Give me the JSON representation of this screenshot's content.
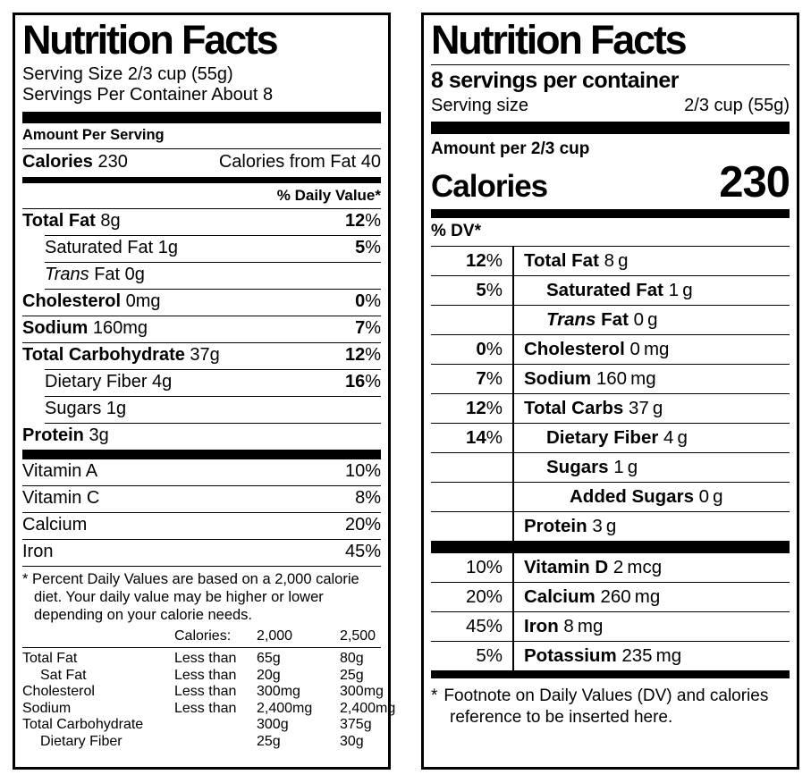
{
  "left_label": {
    "title": "Nutrition Facts",
    "serving_size": "Serving Size 2/3 cup (55g)",
    "servings_per_container": "Servings Per Container About 8",
    "amount_per_serving": "Amount Per Serving",
    "calories_label": "Calories",
    "calories_value": "230",
    "calories_from_fat": "Calories from Fat 40",
    "daily_value_header": "% Daily Value*",
    "nutrient_rows": [
      {
        "it": "",
        "b": "Total Fat",
        "r": " 8g",
        "dv": "12",
        "dvp": "%"
      },
      {
        "it": "",
        "b": "",
        "r": "Saturated Fat 1g",
        "dv": "5",
        "dvp": "%"
      },
      {
        "it": "Trans",
        "b": "",
        "r": " Fat 0g",
        "dv": "",
        "dvp": ""
      },
      {
        "it": "",
        "b": "Cholesterol",
        "r": " 0mg",
        "dv": "0",
        "dvp": "%"
      },
      {
        "it": "",
        "b": "Sodium",
        "r": " 160mg",
        "dv": "7",
        "dvp": "%"
      },
      {
        "it": "",
        "b": "Total Carbohydrate",
        "r": " 37g",
        "dv": "12",
        "dvp": "%"
      },
      {
        "it": "",
        "b": "",
        "r": "Dietary Fiber 4g",
        "dv": "16",
        "dvp": "%"
      },
      {
        "it": "",
        "b": "",
        "r": "Sugars 1g",
        "dv": "",
        "dvp": ""
      },
      {
        "it": "",
        "b": "Protein",
        "r": " 3g",
        "dv": "",
        "dvp": ""
      }
    ],
    "vitamin_rows": [
      {
        "name": "Vitamin A",
        "dv": "10",
        "dvp": "%"
      },
      {
        "name": "Vitamin C",
        "dv": "8",
        "dvp": "%"
      },
      {
        "name": "Calcium",
        "dv": "20",
        "dvp": "%"
      },
      {
        "name": "Iron",
        "dv": "45",
        "dvp": "%"
      }
    ],
    "footnote_marker": "*",
    "footnote_text": "Percent Daily Values are based on a 2,000 calorie diet. Your daily value may be higher or lower depending on your calorie needs.",
    "dv_table": {
      "header": {
        "calories": "Calories:",
        "c2000": "2,000",
        "c2500": "2,500"
      },
      "rows": [
        {
          "name": "Total Fat",
          "cond": "Less than",
          "v2000": "65g",
          "v2500": "80g"
        },
        {
          "name": "Sat Fat",
          "cond": "Less than",
          "v2000": "20g",
          "v2500": "25g"
        },
        {
          "name": "Cholesterol",
          "cond": "Less than",
          "v2000": "300mg",
          "v2500": "300mg"
        },
        {
          "name": "Sodium",
          "cond": "Less than",
          "v2000": "2,400mg",
          "v2500": "2,400mg"
        },
        {
          "name": "Total Carbohydrate",
          "cond": "",
          "v2000": "300g",
          "v2500": "375g"
        },
        {
          "name": "Dietary Fiber",
          "cond": "",
          "v2000": "25g",
          "v2500": "30g"
        }
      ]
    }
  },
  "right_label": {
    "title": "Nutrition Facts",
    "servings_per_container": "8 servings per container",
    "serving_size_label": "Serving size",
    "serving_size_value": "2/3 cup (55g)",
    "amount_per": "Amount per 2/3 cup",
    "calories_label": "Calories",
    "calories_value": "230",
    "dv_header": "% DV*",
    "nutrient_rows": [
      {
        "dv": "12",
        "dvp": "%",
        "it": "",
        "b": "Total Fat",
        "r": " 8 g"
      },
      {
        "dv": "5",
        "dvp": "%",
        "it": "",
        "b": "Saturated Fat",
        "r": " 1 g"
      },
      {
        "dv": "",
        "dvp": "",
        "it": "Trans",
        "b": " Fat",
        "r": " 0 g"
      },
      {
        "dv": "0",
        "dvp": "%",
        "it": "",
        "b": "Cholesterol",
        "r": " 0 mg"
      },
      {
        "dv": "7",
        "dvp": "%",
        "it": "",
        "b": "Sodium",
        "r": " 160 mg"
      },
      {
        "dv": "12",
        "dvp": "%",
        "it": "",
        "b": "Total Carbs",
        "r": " 37 g"
      },
      {
        "dv": "14",
        "dvp": "%",
        "it": "",
        "b": "Dietary Fiber",
        "r": " 4 g"
      },
      {
        "dv": "",
        "dvp": "",
        "it": "",
        "b": "Sugars",
        "r": " 1 g"
      },
      {
        "dv": "",
        "dvp": "",
        "it": "",
        "b": "Added Sugars",
        "r": " 0 g"
      },
      {
        "dv": "",
        "dvp": "",
        "it": "",
        "b": "Protein",
        "r": " 3 g"
      }
    ],
    "vitamin_rows": [
      {
        "dv": "10",
        "dvp": "%",
        "b": "Vitamin D",
        "r": " 2 mcg"
      },
      {
        "dv": "20",
        "dvp": "%",
        "b": "Calcium",
        "r": " 260 mg"
      },
      {
        "dv": "45",
        "dvp": "%",
        "b": "Iron",
        "r": " 8 mg"
      },
      {
        "dv": "5",
        "dvp": "%",
        "b": "Potassium",
        "r": " 235 mg"
      }
    ],
    "footnote_marker": "*",
    "footnote_text": "Footnote on Daily Values (DV) and calories reference to be inserted here."
  }
}
